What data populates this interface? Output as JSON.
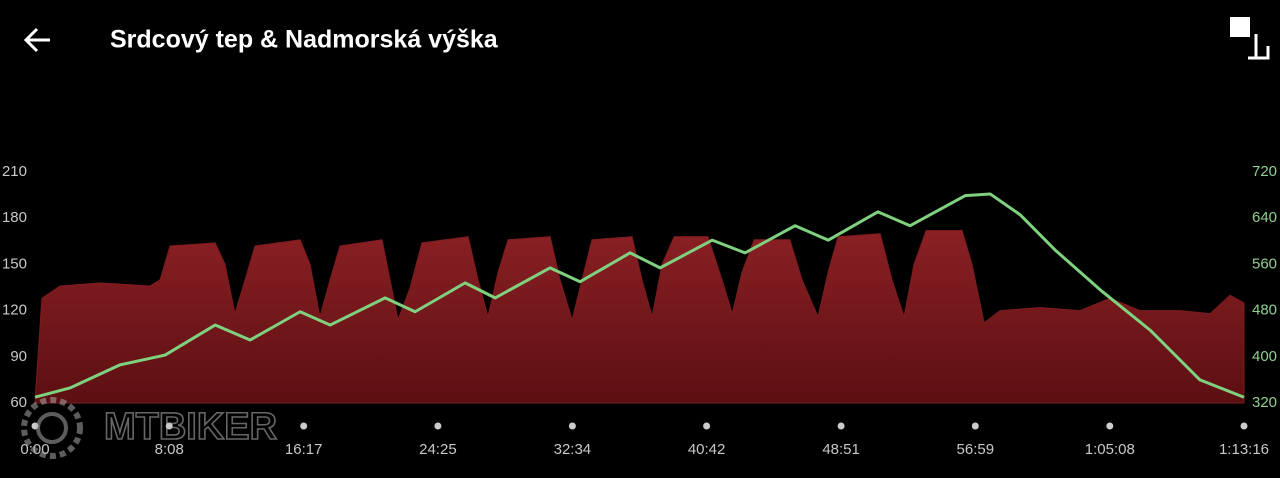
{
  "header": {
    "title": "Srdcový tep & Nadmorská výška"
  },
  "watermark": "MTBIKER",
  "chart_data": {
    "type": "area-line",
    "xlim": [
      0,
      4396
    ],
    "xticks": [
      {
        "value": 0,
        "label": "0:00"
      },
      {
        "value": 488,
        "label": "8:08"
      },
      {
        "value": 977,
        "label": "16:17"
      },
      {
        "value": 1465,
        "label": "24:25"
      },
      {
        "value": 1954,
        "label": "32:34"
      },
      {
        "value": 2442,
        "label": "40:42"
      },
      {
        "value": 2931,
        "label": "48:51"
      },
      {
        "value": 3419,
        "label": "56:59"
      },
      {
        "value": 3908,
        "label": "1:05:08"
      },
      {
        "value": 4396,
        "label": "1:13:16"
      }
    ],
    "ylim": [
      60,
      210
    ],
    "yticks": [
      60,
      90,
      120,
      150,
      180,
      210
    ],
    "y2lim": [
      320,
      720
    ],
    "y2ticks": [
      320,
      400,
      480,
      560,
      640,
      720
    ],
    "series": [
      {
        "type": "area",
        "color": "#7a1c20",
        "x": [
          0,
          25,
          91,
          236,
          418,
          455,
          491,
          655,
          691,
          727,
          764,
          800,
          964,
          1000,
          1036,
          1073,
          1109,
          1262,
          1291,
          1320,
          1364,
          1407,
          1575,
          1611,
          1647,
          1684,
          1720,
          1873,
          1909,
          1953,
          1989,
          2025,
          2171,
          2207,
          2244,
          2280,
          2324,
          2447,
          2498,
          2535,
          2571,
          2615,
          2745,
          2789,
          2847,
          2884,
          2920,
          3073,
          3116,
          3160,
          3196,
          3240,
          3371,
          3407,
          3451,
          3509,
          3655,
          3800,
          3909,
          4018,
          4164,
          4273,
          4345,
          4396
        ],
        "values": [
          60,
          128,
          136,
          138,
          136,
          140,
          162,
          164,
          150,
          118,
          140,
          162,
          166,
          150,
          116,
          140,
          162,
          166,
          140,
          114,
          135,
          164,
          168,
          140,
          116,
          145,
          166,
          168,
          140,
          114,
          140,
          166,
          168,
          140,
          116,
          150,
          168,
          168,
          140,
          118,
          145,
          166,
          166,
          140,
          116,
          145,
          168,
          170,
          140,
          116,
          150,
          172,
          172,
          150,
          112,
          120,
          122,
          120,
          128,
          120,
          120,
          118,
          130,
          125
        ]
      },
      {
        "type": "line",
        "axis": "y2",
        "color": "#7fd17f",
        "x": [
          0,
          127,
          309,
          473,
          655,
          782,
          964,
          1073,
          1273,
          1382,
          1564,
          1673,
          1873,
          1982,
          2164,
          2273,
          2462,
          2582,
          2764,
          2884,
          3065,
          3182,
          3382,
          3473,
          3582,
          3709,
          3873,
          4055,
          4236,
          4396
        ],
        "values": [
          330,
          346,
          386,
          403,
          455,
          429,
          478,
          455,
          502,
          478,
          528,
          502,
          554,
          530,
          580,
          554,
          602,
          580,
          627,
          602,
          651,
          627,
          679,
          682,
          646,
          585,
          516,
          446,
          360,
          330
        ]
      }
    ]
  }
}
